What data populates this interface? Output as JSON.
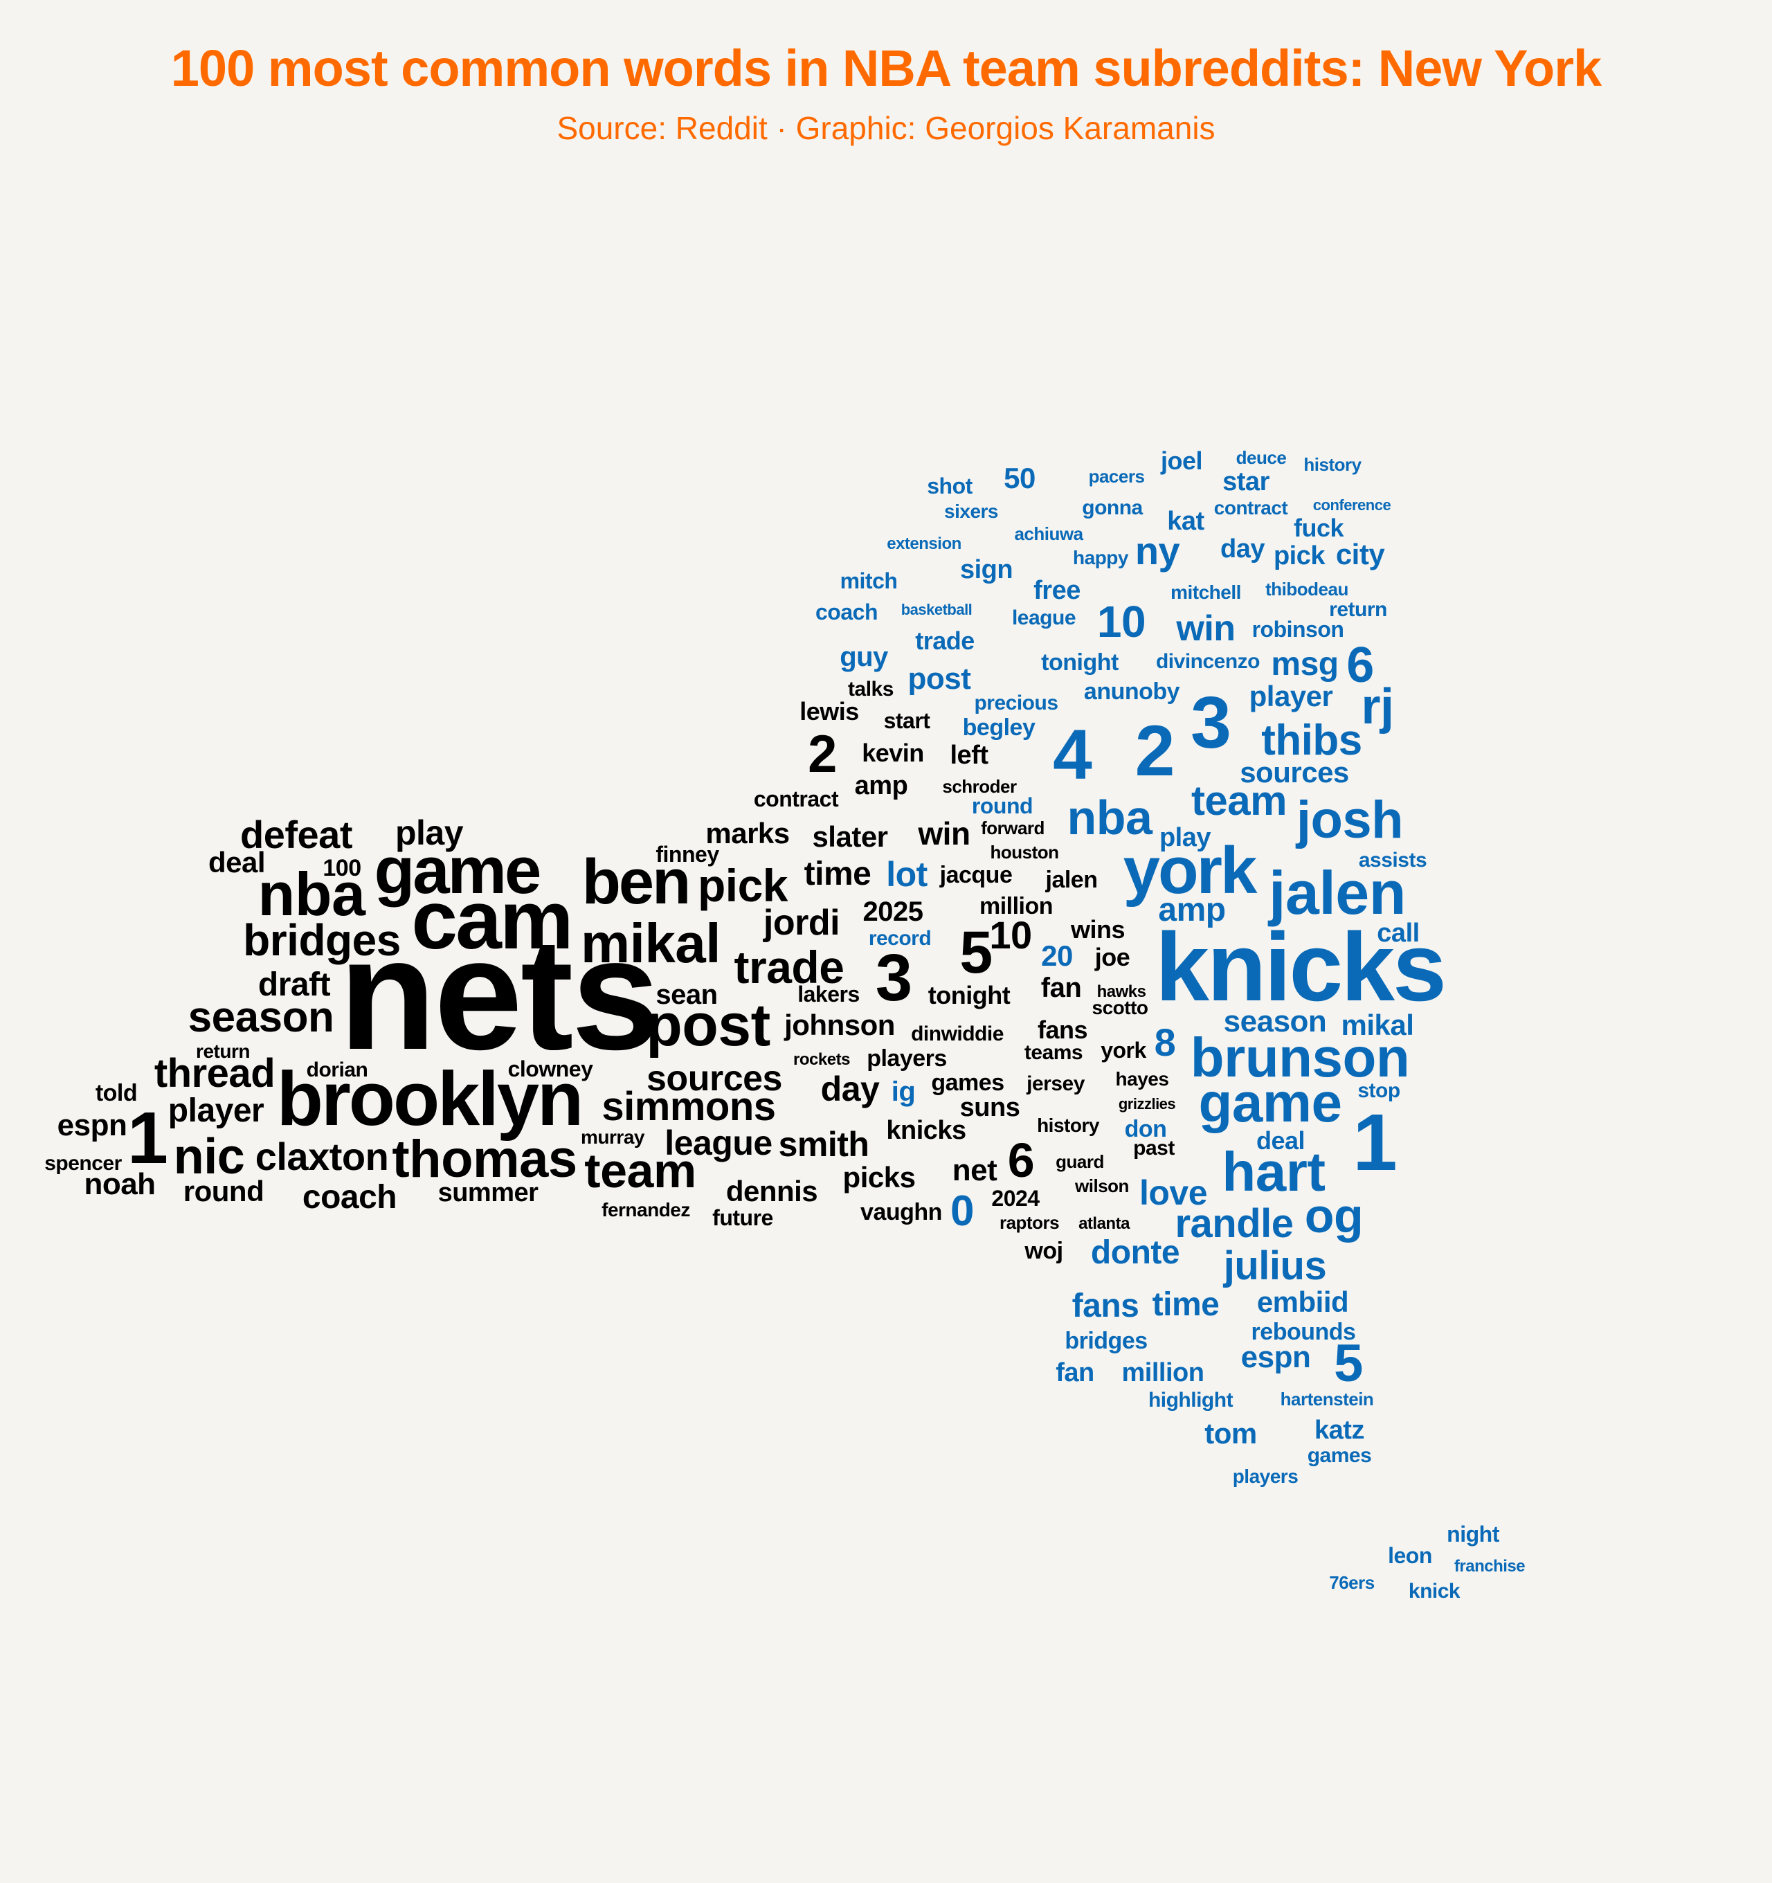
{
  "title": "100 most common words in NBA team subreddits: New York",
  "subtitle": "Source: Reddit · Graphic: Georgios Karamanis",
  "colors": {
    "background": "#f5f4f0",
    "title": "#ff6a00",
    "nets": "#000000",
    "knicks": "#0a6ab8"
  },
  "chart_data": {
    "type": "wordcloud",
    "title": "100 most common words in NBA team subreddits: New York",
    "series": [
      {
        "name": "nets",
        "color": "#000000"
      },
      {
        "name": "knicks",
        "color": "#0a6ab8"
      }
    ],
    "words": [
      {
        "word": "nets",
        "series": "nets",
        "size": 230
      },
      {
        "word": "cam",
        "series": "nets",
        "size": 120
      },
      {
        "word": "brooklyn",
        "series": "nets",
        "size": 110
      },
      {
        "word": "game",
        "series": "nets",
        "size": 96
      },
      {
        "word": "ben",
        "series": "nets",
        "size": 92
      },
      {
        "word": "nba",
        "series": "nets",
        "size": 88
      },
      {
        "word": "post",
        "series": "nets",
        "size": 86
      },
      {
        "word": "mikal",
        "series": "nets",
        "size": 80
      },
      {
        "word": "thomas",
        "series": "nets",
        "size": 76
      },
      {
        "word": "nic",
        "series": "nets",
        "size": 72
      },
      {
        "word": "team",
        "series": "nets",
        "size": 70
      },
      {
        "word": "1",
        "series": "nets",
        "size": 106
      },
      {
        "word": "3",
        "series": "nets",
        "size": 96
      },
      {
        "word": "5",
        "series": "nets",
        "size": 86
      },
      {
        "word": "pick",
        "series": "nets",
        "size": 66
      },
      {
        "word": "trade",
        "series": "nets",
        "size": 66
      },
      {
        "word": "bridges",
        "series": "nets",
        "size": 64
      },
      {
        "word": "season",
        "series": "nets",
        "size": 62
      },
      {
        "word": "simmons",
        "series": "nets",
        "size": 58
      },
      {
        "word": "thread",
        "series": "nets",
        "size": 58
      },
      {
        "word": "claxton",
        "series": "nets",
        "size": 56
      },
      {
        "word": "defeat",
        "series": "nets",
        "size": 56
      },
      {
        "word": "2",
        "series": "nets",
        "size": 76
      },
      {
        "word": "6",
        "series": "nets",
        "size": 70
      },
      {
        "word": "jordi",
        "series": "nets",
        "size": 52
      },
      {
        "word": "sources",
        "series": "nets",
        "size": 52
      },
      {
        "word": "league",
        "series": "nets",
        "size": 50
      },
      {
        "word": "smith",
        "series": "nets",
        "size": 50
      },
      {
        "word": "day",
        "series": "nets",
        "size": 50
      },
      {
        "word": "play",
        "series": "nets",
        "size": 50
      },
      {
        "word": "player",
        "series": "nets",
        "size": 48
      },
      {
        "word": "coach",
        "series": "nets",
        "size": 48
      },
      {
        "word": "draft",
        "series": "nets",
        "size": 48
      },
      {
        "word": "time",
        "series": "nets",
        "size": 48
      },
      {
        "word": "10",
        "series": "nets",
        "size": 56
      },
      {
        "word": "win",
        "series": "nets",
        "size": 46
      },
      {
        "word": "johnson",
        "series": "nets",
        "size": 42
      },
      {
        "word": "net",
        "series": "nets",
        "size": 44
      },
      {
        "word": "espn",
        "series": "nets",
        "size": 44
      },
      {
        "word": "noah",
        "series": "nets",
        "size": 44
      },
      {
        "word": "round",
        "series": "nets",
        "size": 42
      },
      {
        "word": "marks",
        "series": "nets",
        "size": 42
      },
      {
        "word": "slater",
        "series": "nets",
        "size": 42
      },
      {
        "word": "dennis",
        "series": "nets",
        "size": 42
      },
      {
        "word": "deal",
        "series": "nets",
        "size": 42
      },
      {
        "word": "picks",
        "series": "nets",
        "size": 42
      },
      {
        "word": "sean",
        "series": "nets",
        "size": 40
      },
      {
        "word": "2025",
        "series": "nets",
        "size": 40
      },
      {
        "word": "summer",
        "series": "nets",
        "size": 38
      },
      {
        "word": "left",
        "series": "nets",
        "size": 38
      },
      {
        "word": "amp",
        "series": "nets",
        "size": 38
      },
      {
        "word": "kevin",
        "series": "nets",
        "size": 36
      },
      {
        "word": "knicks",
        "series": "nets",
        "size": 38
      },
      {
        "word": "suns",
        "series": "nets",
        "size": 38
      },
      {
        "word": "fan",
        "series": "nets",
        "size": 40
      },
      {
        "word": "fans",
        "series": "nets",
        "size": 36
      },
      {
        "word": "joe",
        "series": "nets",
        "size": 36
      },
      {
        "word": "wins",
        "series": "nets",
        "size": 36
      },
      {
        "word": "tonight",
        "series": "nets",
        "size": 36
      },
      {
        "word": "lewis",
        "series": "nets",
        "size": 36
      },
      {
        "word": "jalen",
        "series": "nets",
        "size": 34
      },
      {
        "word": "million",
        "series": "nets",
        "size": 34
      },
      {
        "word": "jacque",
        "series": "nets",
        "size": 34
      },
      {
        "word": "told",
        "series": "nets",
        "size": 34
      },
      {
        "word": "clowney",
        "series": "nets",
        "size": 32
      },
      {
        "word": "100",
        "series": "nets",
        "size": 34
      },
      {
        "word": "players",
        "series": "nets",
        "size": 34
      },
      {
        "word": "games",
        "series": "nets",
        "size": 34
      },
      {
        "word": "vaughn",
        "series": "nets",
        "size": 34
      },
      {
        "word": "lakers",
        "series": "nets",
        "size": 32
      },
      {
        "word": "finney",
        "series": "nets",
        "size": 32
      },
      {
        "word": "contract",
        "series": "nets",
        "size": 32
      },
      {
        "word": "start",
        "series": "nets",
        "size": 32
      },
      {
        "word": "talks",
        "series": "nets",
        "size": 30
      },
      {
        "word": "dorian",
        "series": "nets",
        "size": 30
      },
      {
        "word": "york",
        "series": "nets",
        "size": 32
      },
      {
        "word": "woj",
        "series": "nets",
        "size": 34
      },
      {
        "word": "future",
        "series": "nets",
        "size": 32
      },
      {
        "word": "spencer",
        "series": "nets",
        "size": 30
      },
      {
        "word": "2024",
        "series": "nets",
        "size": 32
      },
      {
        "word": "murray",
        "series": "nets",
        "size": 28
      },
      {
        "word": "history",
        "series": "nets",
        "size": 28
      },
      {
        "word": "jersey",
        "series": "nets",
        "size": 30
      },
      {
        "word": "teams",
        "series": "nets",
        "size": 30
      },
      {
        "word": "past",
        "series": "nets",
        "size": 30
      },
      {
        "word": "dinwiddie",
        "series": "nets",
        "size": 30
      },
      {
        "word": "return",
        "series": "nets",
        "size": 28
      },
      {
        "word": "hayes",
        "series": "nets",
        "size": 28
      },
      {
        "word": "scotto",
        "series": "nets",
        "size": 28
      },
      {
        "word": "schroder",
        "series": "nets",
        "size": 26
      },
      {
        "word": "forward",
        "series": "nets",
        "size": 26
      },
      {
        "word": "houston",
        "series": "nets",
        "size": 26
      },
      {
        "word": "fernandez",
        "series": "nets",
        "size": 28
      },
      {
        "word": "guard",
        "series": "nets",
        "size": 26
      },
      {
        "word": "wilson",
        "series": "nets",
        "size": 26
      },
      {
        "word": "raptors",
        "series": "nets",
        "size": 26
      },
      {
        "word": "atlanta",
        "series": "nets",
        "size": 24
      },
      {
        "word": "rockets",
        "series": "nets",
        "size": 24
      },
      {
        "word": "hawks",
        "series": "nets",
        "size": 24
      },
      {
        "word": "grizzlies",
        "series": "nets",
        "size": 22
      },
      {
        "word": "knicks",
        "series": "knicks",
        "size": 140
      },
      {
        "word": "1",
        "series": "knicks",
        "size": 116
      },
      {
        "word": "3",
        "series": "knicks",
        "size": 106
      },
      {
        "word": "2",
        "series": "knicks",
        "size": 104
      },
      {
        "word": "4",
        "series": "knicks",
        "size": 102
      },
      {
        "word": "york",
        "series": "knicks",
        "size": 96
      },
      {
        "word": "jalen",
        "series": "knicks",
        "size": 88
      },
      {
        "word": "brunson",
        "series": "knicks",
        "size": 80
      },
      {
        "word": "game",
        "series": "knicks",
        "size": 80
      },
      {
        "word": "hart",
        "series": "knicks",
        "size": 80
      },
      {
        "word": "josh",
        "series": "knicks",
        "size": 76
      },
      {
        "word": "nba",
        "series": "knicks",
        "size": 70
      },
      {
        "word": "og",
        "series": "knicks",
        "size": 70
      },
      {
        "word": "5",
        "series": "knicks",
        "size": 76
      },
      {
        "word": "6",
        "series": "knicks",
        "size": 72
      },
      {
        "word": "rj",
        "series": "knicks",
        "size": 72
      },
      {
        "word": "thibs",
        "series": "knicks",
        "size": 62
      },
      {
        "word": "team",
        "series": "knicks",
        "size": 60
      },
      {
        "word": "randle",
        "series": "knicks",
        "size": 58
      },
      {
        "word": "julius",
        "series": "knicks",
        "size": 58
      },
      {
        "word": "10",
        "series": "knicks",
        "size": 64
      },
      {
        "word": "0",
        "series": "knicks",
        "size": 62
      },
      {
        "word": "8",
        "series": "knicks",
        "size": 56
      },
      {
        "word": "win",
        "series": "knicks",
        "size": 52
      },
      {
        "word": "love",
        "series": "knicks",
        "size": 50
      },
      {
        "word": "donte",
        "series": "knicks",
        "size": 48
      },
      {
        "word": "fans",
        "series": "knicks",
        "size": 48
      },
      {
        "word": "time",
        "series": "knicks",
        "size": 48
      },
      {
        "word": "amp",
        "series": "knicks",
        "size": 48
      },
      {
        "word": "msg",
        "series": "knicks",
        "size": 48
      },
      {
        "word": "ny",
        "series": "knicks",
        "size": 56
      },
      {
        "word": "lot",
        "series": "knicks",
        "size": 50
      },
      {
        "word": "season",
        "series": "knicks",
        "size": 44
      },
      {
        "word": "sources",
        "series": "knicks",
        "size": 42
      },
      {
        "word": "mikal",
        "series": "knicks",
        "size": 42
      },
      {
        "word": "post",
        "series": "knicks",
        "size": 44
      },
      {
        "word": "player",
        "series": "knicks",
        "size": 42
      },
      {
        "word": "espn",
        "series": "knicks",
        "size": 44
      },
      {
        "word": "embiid",
        "series": "knicks",
        "size": 42
      },
      {
        "word": "call",
        "series": "knicks",
        "size": 38
      },
      {
        "word": "tom",
        "series": "knicks",
        "size": 42
      },
      {
        "word": "katz",
        "series": "knicks",
        "size": 38
      },
      {
        "word": "guy",
        "series": "knicks",
        "size": 40
      },
      {
        "word": "ig",
        "series": "knicks",
        "size": 40
      },
      {
        "word": "20",
        "series": "knicks",
        "size": 42
      },
      {
        "word": "play",
        "series": "knicks",
        "size": 38
      },
      {
        "word": "fan",
        "series": "knicks",
        "size": 38
      },
      {
        "word": "million",
        "series": "knicks",
        "size": 38
      },
      {
        "word": "city",
        "series": "knicks",
        "size": 42
      },
      {
        "word": "50",
        "series": "knicks",
        "size": 42
      },
      {
        "word": "star",
        "series": "knicks",
        "size": 38
      },
      {
        "word": "kat",
        "series": "knicks",
        "size": 38
      },
      {
        "word": "joel",
        "series": "knicks",
        "size": 36
      },
      {
        "word": "free",
        "series": "knicks",
        "size": 38
      },
      {
        "word": "sign",
        "series": "knicks",
        "size": 38
      },
      {
        "word": "day",
        "series": "knicks",
        "size": 38
      },
      {
        "word": "pick",
        "series": "knicks",
        "size": 38
      },
      {
        "word": "fuck",
        "series": "knicks",
        "size": 36
      },
      {
        "word": "trade",
        "series": "knicks",
        "size": 36
      },
      {
        "word": "deal",
        "series": "knicks",
        "size": 36
      },
      {
        "word": "rebounds",
        "series": "knicks",
        "size": 34
      },
      {
        "word": "bridges",
        "series": "knicks",
        "size": 34
      },
      {
        "word": "anunoby",
        "series": "knicks",
        "size": 34
      },
      {
        "word": "don",
        "series": "knicks",
        "size": 34
      },
      {
        "word": "begley",
        "series": "knicks",
        "size": 34
      },
      {
        "word": "tonight",
        "series": "knicks",
        "size": 34
      },
      {
        "word": "robinson",
        "series": "knicks",
        "size": 32
      },
      {
        "word": "mitch",
        "series": "knicks",
        "size": 32
      },
      {
        "word": "coach",
        "series": "knicks",
        "size": 32
      },
      {
        "word": "shot",
        "series": "knicks",
        "size": 32
      },
      {
        "word": "night",
        "series": "knicks",
        "size": 32
      },
      {
        "word": "leon",
        "series": "knicks",
        "size": 32
      },
      {
        "word": "divincenzo",
        "series": "knicks",
        "size": 30
      },
      {
        "word": "precious",
        "series": "knicks",
        "size": 30
      },
      {
        "word": "round",
        "series": "knicks",
        "size": 32
      },
      {
        "word": "record",
        "series": "knicks",
        "size": 30
      },
      {
        "word": "gonna",
        "series": "knicks",
        "size": 30
      },
      {
        "word": "assists",
        "series": "knicks",
        "size": 30
      },
      {
        "word": "stop",
        "series": "knicks",
        "size": 30
      },
      {
        "word": "highlight",
        "series": "knicks",
        "size": 30
      },
      {
        "word": "league",
        "series": "knicks",
        "size": 30
      },
      {
        "word": "return",
        "series": "knicks",
        "size": 30
      },
      {
        "word": "mitchell",
        "series": "knicks",
        "size": 28
      },
      {
        "word": "happy",
        "series": "knicks",
        "size": 28
      },
      {
        "word": "sixers",
        "series": "knicks",
        "size": 28
      },
      {
        "word": "contract",
        "series": "knicks",
        "size": 28
      },
      {
        "word": "knick",
        "series": "knicks",
        "size": 30
      },
      {
        "word": "games",
        "series": "knicks",
        "size": 30
      },
      {
        "word": "players",
        "series": "knicks",
        "size": 28
      },
      {
        "word": "thibodeau",
        "series": "knicks",
        "size": 26
      },
      {
        "word": "pacers",
        "series": "knicks",
        "size": 26
      },
      {
        "word": "deuce",
        "series": "knicks",
        "size": 26
      },
      {
        "word": "history",
        "series": "knicks",
        "size": 26
      },
      {
        "word": "achiuwa",
        "series": "knicks",
        "size": 26
      },
      {
        "word": "hartenstein",
        "series": "knicks",
        "size": 26
      },
      {
        "word": "76ers",
        "series": "knicks",
        "size": 26
      },
      {
        "word": "extension",
        "series": "knicks",
        "size": 24
      },
      {
        "word": "basketball",
        "series": "knicks",
        "size": 22
      },
      {
        "word": "conference",
        "series": "knicks",
        "size": 22
      },
      {
        "word": "franchise",
        "series": "knicks",
        "size": 24
      }
    ]
  }
}
